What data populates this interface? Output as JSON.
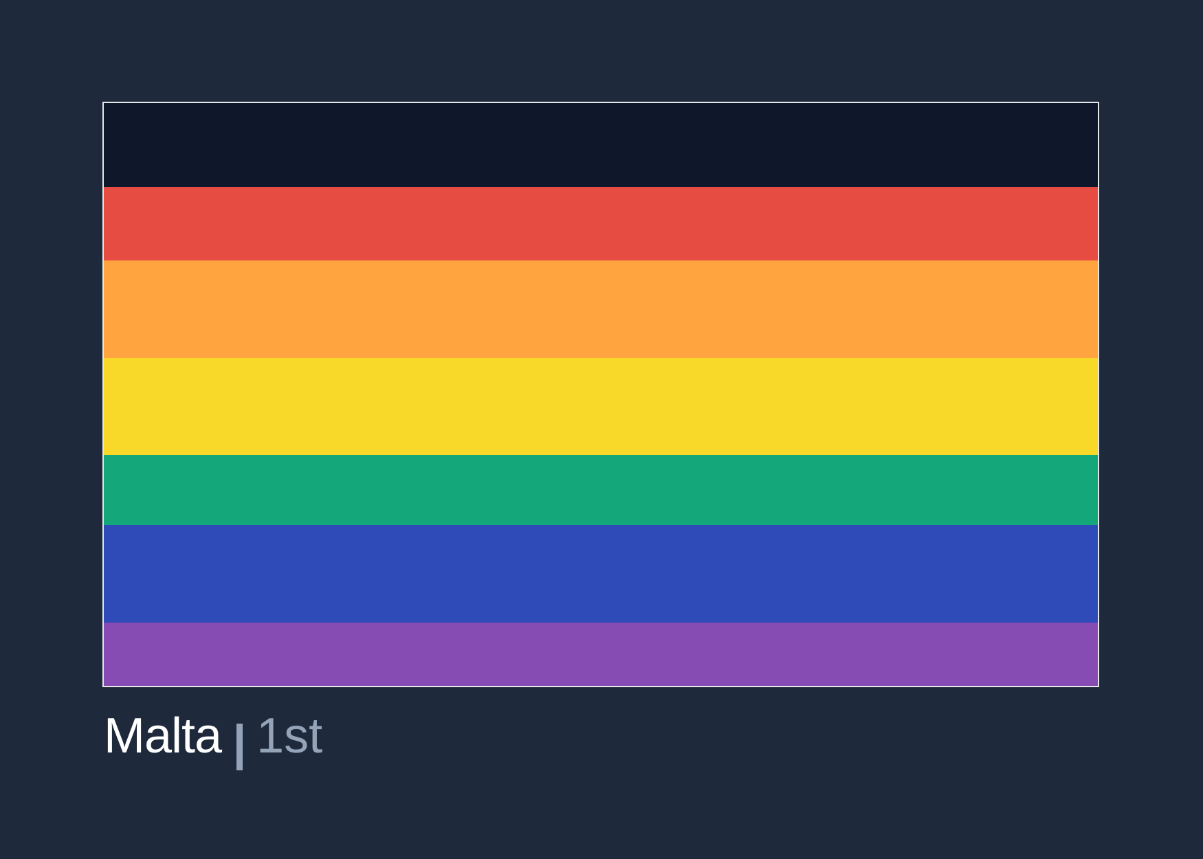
{
  "flag": {
    "stripes": [
      {
        "color": "#0f172a",
        "name": "black"
      },
      {
        "color": "#e74c42",
        "name": "red"
      },
      {
        "color": "#ffa43f",
        "name": "orange"
      },
      {
        "color": "#f8d92a",
        "name": "yellow"
      },
      {
        "color": "#13a77a",
        "name": "green"
      },
      {
        "color": "#2f4bb8",
        "name": "blue"
      },
      {
        "color": "#874bb4",
        "name": "purple"
      }
    ]
  },
  "caption": {
    "name": "Malta",
    "rank": "1st"
  },
  "colors": {
    "background": "#1e293b",
    "flag_border": "#e5e7eb",
    "caption_primary": "#ffffff",
    "caption_secondary": "#94a3b8"
  }
}
